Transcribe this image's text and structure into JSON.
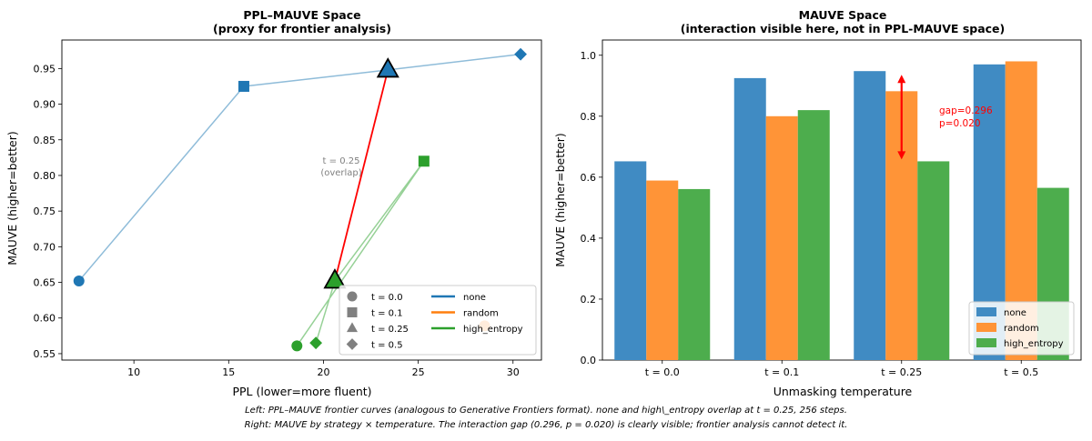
{
  "colors": {
    "none": "#1f77b4",
    "random": "#ff7f0e",
    "high_entropy": "#2ca02c",
    "none_bar": "#408bc3",
    "random_bar": "#ff9437",
    "high_entropy_bar": "#4dad4d",
    "gap": "#ff0000",
    "note": "#808080"
  },
  "chart_data": [
    {
      "type": "scatter",
      "title_line1": "PPL–MAUVE Space",
      "title_line2": "(proxy for frontier analysis)",
      "xlabel": "PPL (lower=more fluent)",
      "ylabel": "MAUVE (higher=better)",
      "xlim": [
        6.2,
        31.5
      ],
      "ylim": [
        0.541,
        0.99
      ],
      "xticks": [
        "10",
        "15",
        "20",
        "25",
        "30"
      ],
      "yticks": [
        "0.55",
        "0.60",
        "0.65",
        "0.70",
        "0.75",
        "0.80",
        "0.85",
        "0.90",
        "0.95"
      ],
      "grid": false,
      "series": [
        {
          "name": "none",
          "points": [
            {
              "t": "0.0",
              "x": 7.1,
              "y": 0.652
            },
            {
              "t": "0.1",
              "x": 15.8,
              "y": 0.925
            },
            {
              "t": "0.25",
              "x": 23.4,
              "y": 0.948
            },
            {
              "t": "0.5",
              "x": 30.4,
              "y": 0.97
            }
          ]
        },
        {
          "name": "random",
          "points": [
            {
              "t": "0.0",
              "x": 28.5,
              "y": 0.589
            }
          ]
        },
        {
          "name": "high_entropy",
          "points": [
            {
              "t": "0.0",
              "x": 18.6,
              "y": 0.561
            },
            {
              "t": "0.1",
              "x": 25.3,
              "y": 0.82
            },
            {
              "t": "0.25",
              "x": 20.6,
              "y": 0.652
            },
            {
              "t": "0.5",
              "x": 19.6,
              "y": 0.565
            }
          ]
        }
      ],
      "annotation_line1": "t = 0.25",
      "annotation_line2": "(overlap)",
      "legend_markers": [
        {
          "label": "t = 0.0",
          "shape": "circle"
        },
        {
          "label": "t = 0.1",
          "shape": "square"
        },
        {
          "label": "t = 0.25",
          "shape": "triangle"
        },
        {
          "label": "t = 0.5",
          "shape": "diamond"
        }
      ],
      "legend_lines": [
        "none",
        "random",
        "high_entropy"
      ],
      "legend_position": "lower-right"
    },
    {
      "type": "bar",
      "title_line1": "MAUVE Space",
      "title_line2": "(interaction visible here, not in PPL-MAUVE space)",
      "xlabel": "Unmasking temperature",
      "ylabel": "MAUVE (higher=better)",
      "ylim": [
        0,
        1.05
      ],
      "yticks": [
        "0.0",
        "0.2",
        "0.4",
        "0.6",
        "0.8",
        "1.0"
      ],
      "categories": [
        "t = 0.0",
        "t = 0.1",
        "t = 0.25",
        "t = 0.5"
      ],
      "series": [
        {
          "name": "none",
          "values": [
            0.652,
            0.925,
            0.948,
            0.97
          ]
        },
        {
          "name": "random",
          "values": [
            0.589,
            0.8,
            0.882,
            0.98
          ]
        },
        {
          "name": "high_entropy",
          "values": [
            0.561,
            0.82,
            0.652,
            0.565
          ]
        }
      ],
      "gap_annotation_line1": "gap=0.296",
      "gap_annotation_line2": "p=0.020",
      "legend_position": "lower-right"
    }
  ],
  "caption_line1": "Left: PPL–MAUVE frontier curves (analogous to Generative Frontiers format). none and high\\_entropy overlap at t = 0.25, 256 steps.",
  "caption_line2": "Right: MAUVE by strategy × temperature. The interaction gap (0.296, p = 0.020) is clearly visible; frontier analysis cannot detect it."
}
